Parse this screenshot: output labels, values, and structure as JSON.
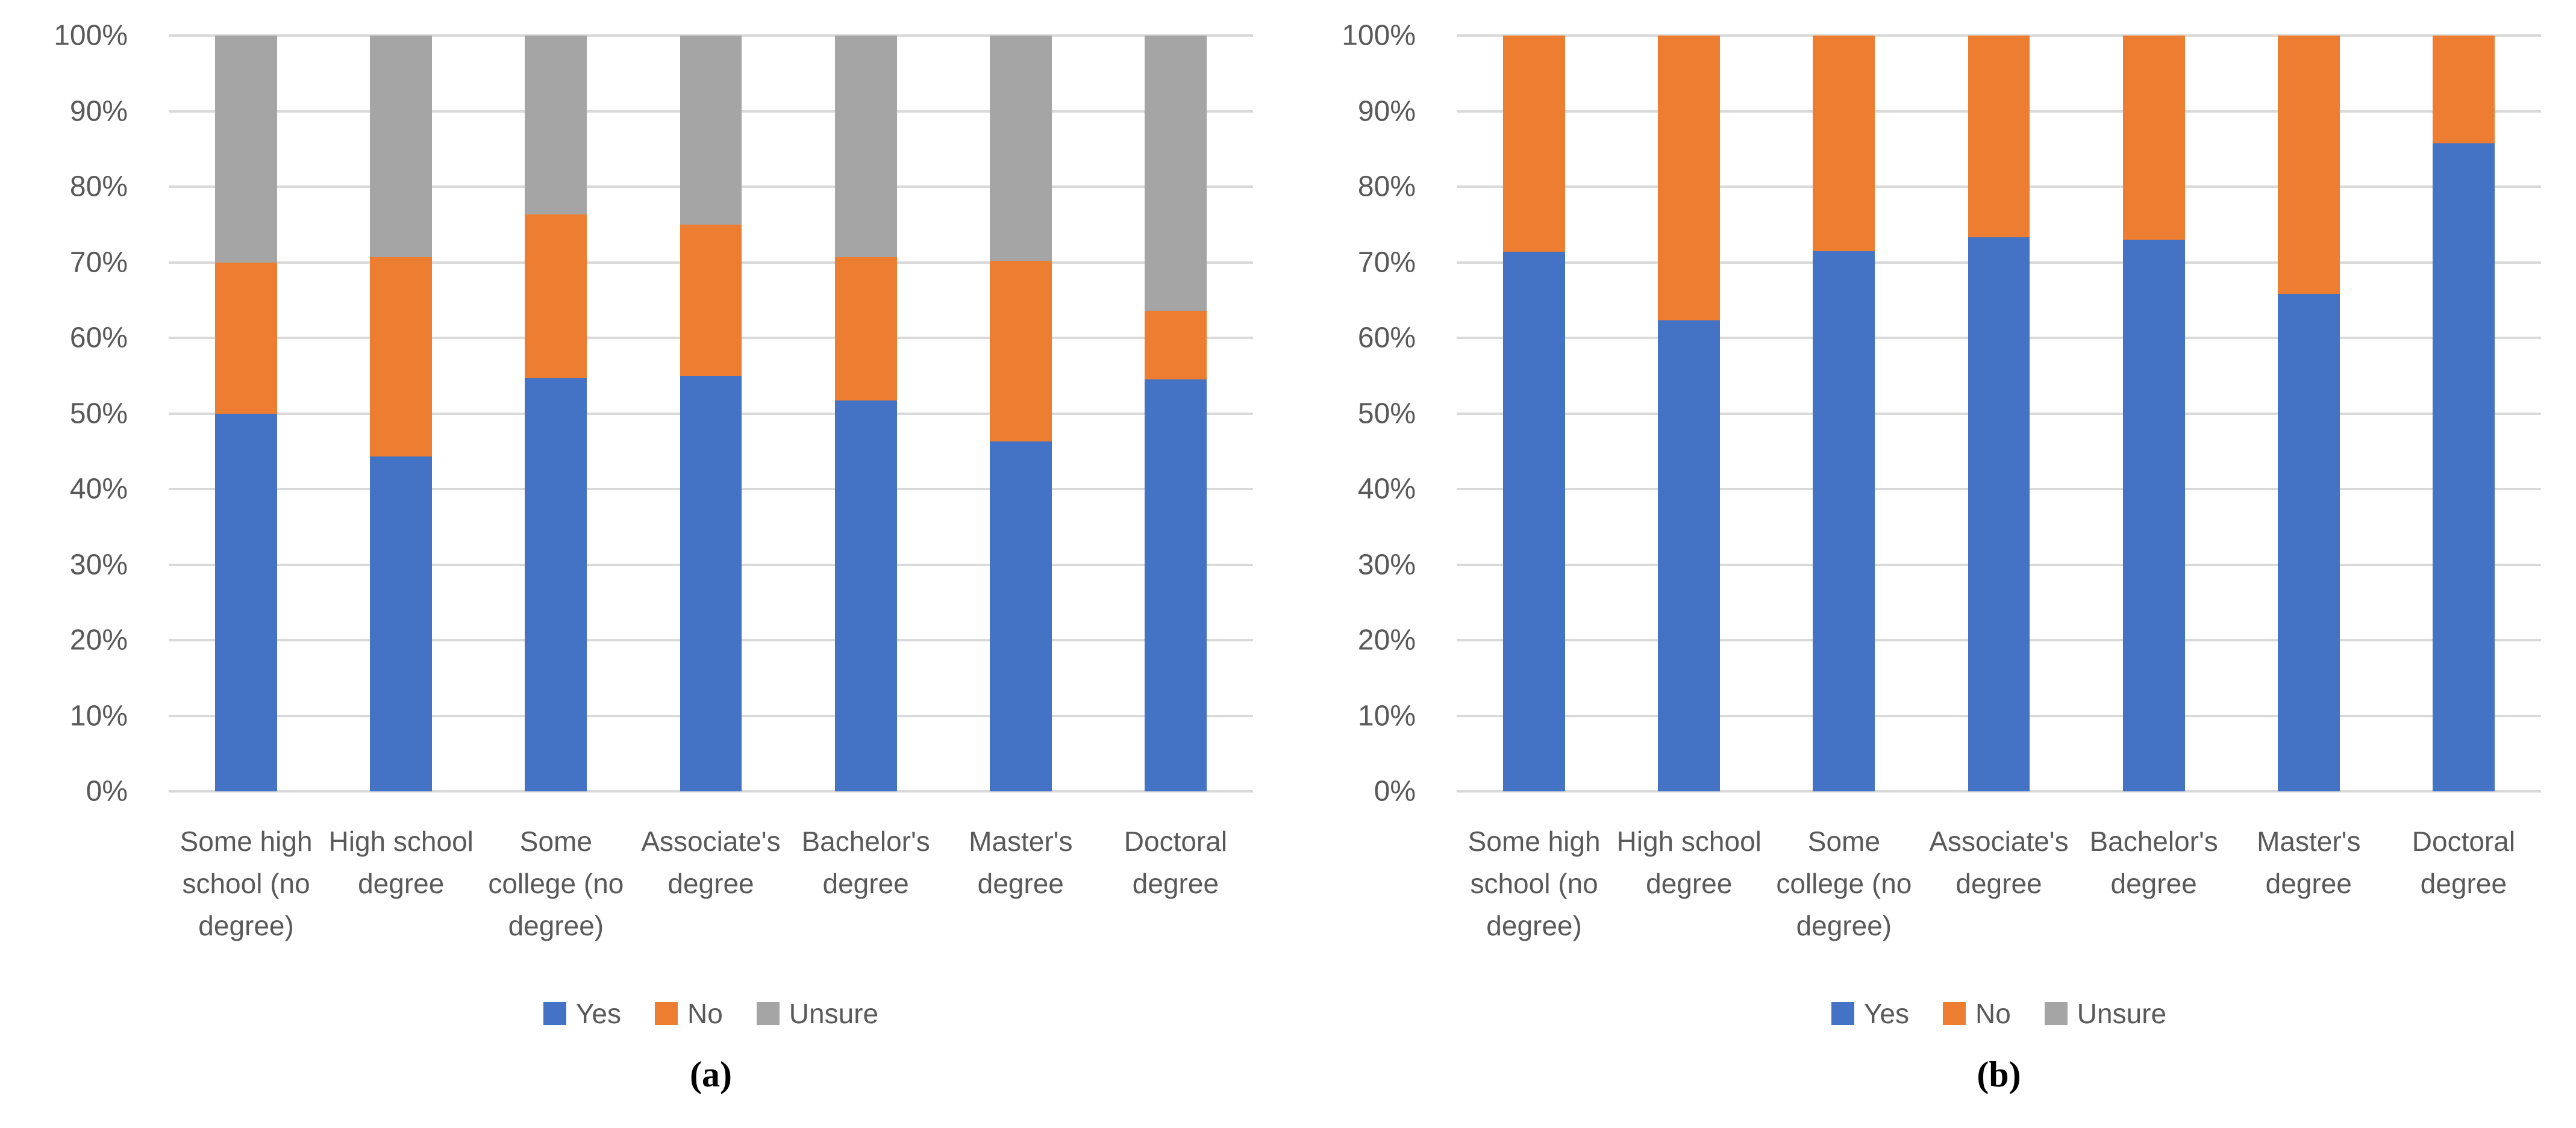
{
  "page": {
    "background": "#ffffff"
  },
  "colors": {
    "yes": "#4472C4",
    "no": "#ED7D31",
    "unsure": "#A5A5A5",
    "gridline": "#D9D9D9",
    "axis_text": "#595959"
  },
  "chart_data": [
    {
      "id": "a",
      "type": "bar",
      "stacked": true,
      "orientation": "vertical",
      "caption": "(a)",
      "title": "",
      "xlabel": "",
      "ylabel": "",
      "grid": true,
      "legend_position": "bottom",
      "ylim": [
        0,
        100
      ],
      "yticks": [
        {
          "label": "100%",
          "value": 100
        },
        {
          "label": "90%",
          "value": 90
        },
        {
          "label": "80%",
          "value": 80
        },
        {
          "label": "70%",
          "value": 70
        },
        {
          "label": "60%",
          "value": 60
        },
        {
          "label": "50%",
          "value": 50
        },
        {
          "label": "40%",
          "value": 40
        },
        {
          "label": "30%",
          "value": 30
        },
        {
          "label": "20%",
          "value": 20
        },
        {
          "label": "10%",
          "value": 10
        },
        {
          "label": "0%",
          "value": 0
        }
      ],
      "categories": [
        "Some high school (no degree)",
        "High school degree",
        "Some college (no degree)",
        "Associate's degree",
        "Bachelor's degree",
        "Master's degree",
        "Doctoral degree"
      ],
      "series": [
        {
          "name": "Yes",
          "color": "#4472C4",
          "values": [
            50.0,
            44.3,
            54.7,
            55.0,
            51.7,
            46.3,
            54.5
          ]
        },
        {
          "name": "No",
          "color": "#ED7D31",
          "values": [
            20.0,
            26.4,
            21.6,
            20.0,
            19.0,
            23.9,
            9.1
          ]
        },
        {
          "name": "Unsure",
          "color": "#A5A5A5",
          "values": [
            30.0,
            29.3,
            23.7,
            25.0,
            29.3,
            29.8,
            36.4
          ]
        }
      ]
    },
    {
      "id": "b",
      "type": "bar",
      "stacked": true,
      "orientation": "vertical",
      "caption": "(b)",
      "title": "",
      "xlabel": "",
      "ylabel": "",
      "grid": true,
      "legend_position": "bottom",
      "ylim": [
        0,
        100
      ],
      "yticks": [
        {
          "label": "100%",
          "value": 100
        },
        {
          "label": "90%",
          "value": 90
        },
        {
          "label": "80%",
          "value": 80
        },
        {
          "label": "70%",
          "value": 70
        },
        {
          "label": "60%",
          "value": 60
        },
        {
          "label": "50%",
          "value": 50
        },
        {
          "label": "40%",
          "value": 40
        },
        {
          "label": "30%",
          "value": 30
        },
        {
          "label": "20%",
          "value": 20
        },
        {
          "label": "10%",
          "value": 10
        },
        {
          "label": "0%",
          "value": 0
        }
      ],
      "categories": [
        "Some high school (no degree)",
        "High school degree",
        "Some college (no degree)",
        "Associate's degree",
        "Bachelor's degree",
        "Master's degree",
        "Doctoral degree"
      ],
      "series": [
        {
          "name": "Yes",
          "color": "#4472C4",
          "values": [
            71.4,
            62.3,
            71.5,
            73.3,
            73.0,
            65.8,
            85.7
          ]
        },
        {
          "name": "No",
          "color": "#ED7D31",
          "values": [
            28.6,
            37.7,
            28.5,
            26.7,
            27.0,
            34.2,
            14.3
          ]
        },
        {
          "name": "Unsure",
          "color": "#A5A5A5",
          "values": [
            0,
            0,
            0,
            0,
            0,
            0,
            0
          ]
        }
      ]
    }
  ]
}
